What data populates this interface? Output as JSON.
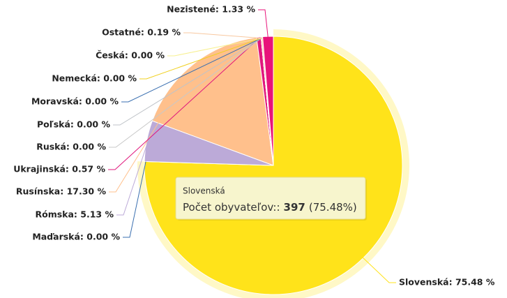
{
  "chart_data": {
    "type": "pie",
    "categories": [
      "Slovenská",
      "Maďarská",
      "Rómska",
      "Rusínska",
      "Ukrajinská",
      "Ruská",
      "Poľská",
      "Moravská",
      "Nemecká",
      "Česká",
      "Ostatné",
      "Nezistené"
    ],
    "values": [
      75.48,
      0,
      5.13,
      17.3,
      0.57,
      0,
      0,
      0,
      0,
      0,
      0.19,
      1.33
    ],
    "value_labels": [
      "Slovenská: 75.48 %",
      "Maďarská: 0.00 %",
      "Rómska: 5.13 %",
      "Rusínska: 17.30 %",
      "Ukrajinská: 0.57 %",
      "Ruská: 0.00 %",
      "Poľská: 0.00 %",
      "Moravská: 0.00 %",
      "Nemecká: 0.00 %",
      "Česká: 0.00 %",
      "Ostatné: 0.19 %",
      "Nezistené: 1.33 %"
    ],
    "colors": [
      "#ffe31a",
      "#3a6fb0",
      "#bcaad8",
      "#ffc08c",
      "#e0177c",
      "#c8c8c8",
      "#bfc3c8",
      "#3a6fb0",
      "#f0d020",
      "#f7f090",
      "#f8c8a0",
      "#e8137a"
    ],
    "tooltip": {
      "title": "Slovenská",
      "label": "Počet obyvateľov::",
      "value": 397,
      "percent_label": "(75.48%)"
    }
  }
}
